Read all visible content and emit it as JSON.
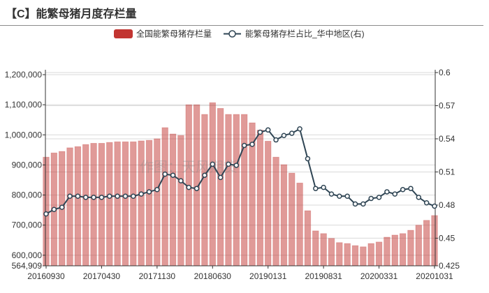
{
  "watermark": "作图：天风期货",
  "chart_data": {
    "type": "bar",
    "title": "【C】能繁母猪月度存栏量",
    "legend_position": "top",
    "grid": true,
    "x": [
      20160930,
      20161031,
      20161130,
      20161231,
      20170131,
      20170228,
      20170331,
      20170430,
      20170531,
      20170630,
      20170731,
      20170831,
      20170930,
      20171031,
      20171130,
      20171231,
      20180131,
      20180228,
      20180331,
      20180430,
      20180531,
      20180630,
      20180731,
      20180831,
      20180930,
      20181031,
      20181130,
      20181231,
      20190131,
      20190228,
      20190331,
      20190430,
      20190531,
      20190630,
      20190731,
      20190831,
      20190930,
      20191031,
      20191130,
      20191231,
      20200131,
      20200229,
      20200331,
      20200430,
      20200531,
      20200630,
      20200731,
      20200831,
      20200930,
      20201031
    ],
    "x_tick_labels": [
      "20160930",
      "20170430",
      "20171130",
      "20180630",
      "20190131",
      "20190831",
      "20200331",
      "20201031"
    ],
    "y_left": {
      "range": [
        564909,
        1207000
      ],
      "ticks": [
        564909,
        600000,
        700000,
        800000,
        900000,
        1000000,
        1100000,
        1200000
      ]
    },
    "y_right": {
      "range": [
        0.425,
        0.6
      ],
      "ticks": [
        0.425,
        0.45,
        0.48,
        0.51,
        0.54,
        0.57,
        0.6
      ]
    },
    "series": [
      {
        "name": "全国能繁母猪存栏量",
        "type": "bar",
        "axis": "left",
        "color": "#c23531",
        "values": [
          926000,
          940000,
          945000,
          957000,
          961000,
          968000,
          972000,
          972000,
          975000,
          977000,
          977000,
          977000,
          980000,
          982000,
          987000,
          1024000,
          1003000,
          998000,
          1100000,
          1100000,
          1068000,
          1107000,
          1088000,
          1068000,
          1068000,
          1068000,
          1040000,
          1016000,
          979000,
          926000,
          901000,
          873000,
          840000,
          748000,
          681000,
          672000,
          656000,
          642000,
          639000,
          632000,
          628000,
          639000,
          644000,
          660000,
          667000,
          672000,
          683000,
          700000,
          716000,
          732000
        ]
      },
      {
        "name": "能繁母猪存栏占比_华中地区(右)",
        "type": "line",
        "axis": "right",
        "color": "#2f4554",
        "values": [
          0.472,
          0.476,
          0.478,
          0.488,
          0.488,
          0.487,
          0.487,
          0.487,
          0.488,
          0.488,
          0.488,
          0.488,
          0.49,
          0.492,
          0.494,
          0.508,
          0.507,
          0.502,
          0.496,
          0.495,
          0.507,
          0.517,
          0.505,
          0.517,
          0.516,
          0.534,
          0.535,
          0.546,
          0.548,
          0.539,
          0.543,
          0.545,
          0.549,
          0.522,
          0.495,
          0.496,
          0.49,
          0.488,
          0.488,
          0.481,
          0.481,
          0.486,
          0.487,
          0.492,
          0.49,
          0.494,
          0.495,
          0.487,
          0.482,
          0.479
        ]
      }
    ]
  }
}
